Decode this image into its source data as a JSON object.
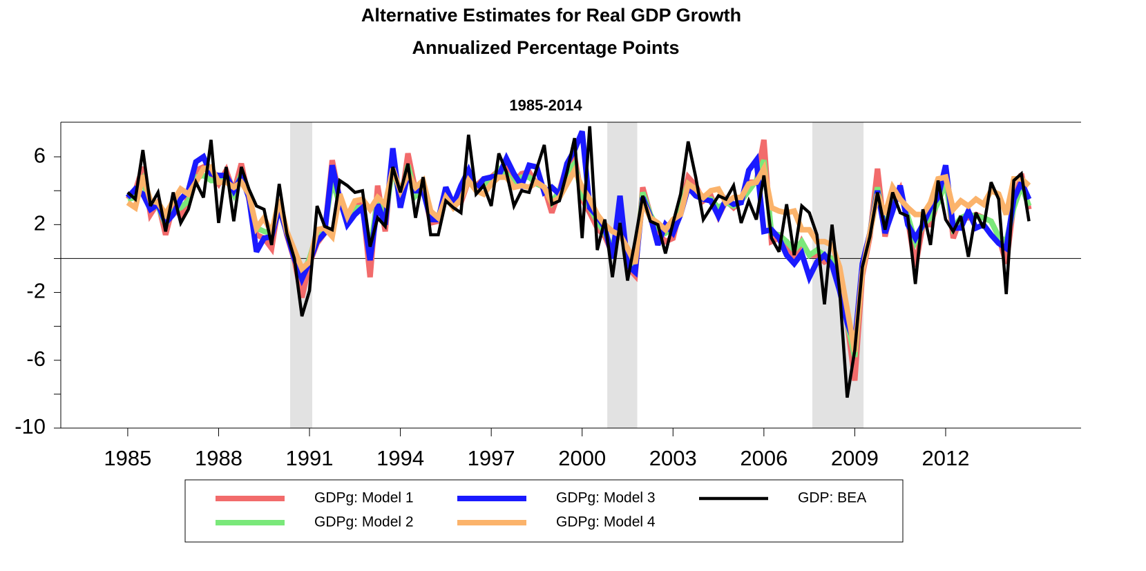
{
  "chart_data": {
    "type": "line",
    "title": "Alternative Estimates for Real GDP Growth",
    "subtitle": "Annualized Percentage Points",
    "panel_title": "1985-2014",
    "x": [
      1985,
      1985.25,
      1985.5,
      1985.75,
      1986,
      1986.25,
      1986.5,
      1986.75,
      1987,
      1987.25,
      1987.5,
      1987.75,
      1988,
      1988.25,
      1988.5,
      1988.75,
      1989,
      1989.25,
      1989.5,
      1989.75,
      1990,
      1990.25,
      1990.5,
      1990.75,
      1991,
      1991.25,
      1991.5,
      1991.75,
      1992,
      1992.25,
      1992.5,
      1992.75,
      1993,
      1993.25,
      1993.5,
      1993.75,
      1994,
      1994.25,
      1994.5,
      1994.75,
      1995,
      1995.25,
      1995.5,
      1995.75,
      1996,
      1996.25,
      1996.5,
      1996.75,
      1997,
      1997.25,
      1997.5,
      1997.75,
      1998,
      1998.25,
      1998.5,
      1998.75,
      1999,
      1999.25,
      1999.5,
      1999.75,
      2000,
      2000.25,
      2000.5,
      2000.75,
      2001,
      2001.25,
      2001.5,
      2001.75,
      2002,
      2002.25,
      2002.5,
      2002.75,
      2003,
      2003.25,
      2003.5,
      2003.75,
      2004,
      2004.25,
      2004.5,
      2004.75,
      2005,
      2005.25,
      2005.5,
      2005.75,
      2006,
      2006.25,
      2006.5,
      2006.75,
      2007,
      2007.25,
      2007.5,
      2007.75,
      2008,
      2008.25,
      2008.5,
      2008.75,
      2009,
      2009.25,
      2009.5,
      2009.75,
      2010,
      2010.25,
      2010.5,
      2010.75,
      2011,
      2011.25,
      2011.5,
      2011.75,
      2012,
      2012.25,
      2012.5,
      2012.75,
      2013,
      2013.25,
      2013.5,
      2013.75,
      2014,
      2014.25,
      2014.5,
      2014.75
    ],
    "series": [
      {
        "name": "GDPg: Model 1",
        "color": "#f26b6b",
        "width": 8,
        "values": [
          3.5,
          4.0,
          5.4,
          2.6,
          3.3,
          1.4,
          3.1,
          2.5,
          3.6,
          5.2,
          5.4,
          5.0,
          4.4,
          5.2,
          3.9,
          5.6,
          3.5,
          1.4,
          1.2,
          0.6,
          3.4,
          1.4,
          -0.1,
          -2.3,
          -0.3,
          0.9,
          1.5,
          5.8,
          3.5,
          2.3,
          3.1,
          3.3,
          -1.1,
          4.3,
          1.6,
          6.3,
          3.0,
          6.2,
          4.0,
          4.2,
          2.1,
          2.2,
          3.8,
          3.4,
          3.3,
          4.6,
          4.3,
          4.7,
          4.8,
          5.2,
          5.5,
          4.5,
          5.0,
          5.1,
          4.4,
          4.2,
          2.7,
          4.0,
          5.5,
          6.0,
          3.5,
          2.7,
          1.8,
          1.3,
          0.3,
          2.5,
          -0.5,
          -1.0,
          4.2,
          2.6,
          1.5,
          1.0,
          1.2,
          3.0,
          4.8,
          4.3,
          3.4,
          3.7,
          2.5,
          3.4,
          3.0,
          3.4,
          4.5,
          4.5,
          7.0,
          1.0,
          1.2,
          1.0,
          0.0,
          1.0,
          0.2,
          0.2,
          -0.2,
          0.0,
          -1.2,
          -3.8,
          -7.2,
          -1.0,
          1.3,
          5.3,
          1.3,
          3.3,
          4.1,
          2.3,
          -0.5,
          2.0,
          2.0,
          3.5,
          5.0,
          1.2,
          2.4,
          2.4,
          2.6,
          2.4,
          2.2,
          1.3,
          -0.3,
          3.2,
          5.0,
          2.9
        ]
      },
      {
        "name": "GDPg: Model 2",
        "color": "#7ae87a",
        "width": 8,
        "values": [
          3.5,
          3.6,
          4.6,
          3.0,
          3.1,
          2.0,
          2.8,
          3.0,
          3.4,
          4.8,
          4.9,
          4.6,
          4.6,
          4.8,
          3.8,
          5.0,
          3.6,
          1.8,
          1.6,
          1.5,
          3.0,
          1.5,
          0.3,
          -1.0,
          0.0,
          1.5,
          1.8,
          4.6,
          3.2,
          2.6,
          3.0,
          3.0,
          0.5,
          3.5,
          2.2,
          5.6,
          3.3,
          5.5,
          3.7,
          4.2,
          2.6,
          2.4,
          3.8,
          3.2,
          3.6,
          4.8,
          4.2,
          4.4,
          4.5,
          5.3,
          5.0,
          4.4,
          4.8,
          4.8,
          4.4,
          4.2,
          3.3,
          4.0,
          5.1,
          5.6,
          3.7,
          3.0,
          2.2,
          1.5,
          0.6,
          2.6,
          0.0,
          -0.6,
          3.9,
          2.6,
          1.8,
          1.5,
          1.8,
          3.2,
          4.4,
          4.0,
          3.5,
          3.5,
          3.0,
          3.3,
          3.1,
          3.4,
          4.0,
          4.6,
          5.8,
          1.5,
          1.4,
          1.0,
          0.5,
          1.0,
          0.2,
          0.5,
          0.2,
          0.0,
          -1.2,
          -3.8,
          -5.8,
          -0.6,
          1.5,
          4.2,
          1.8,
          3.2,
          3.8,
          2.5,
          1.0,
          2.0,
          2.4,
          3.3,
          4.5,
          1.8,
          2.4,
          2.6,
          2.5,
          2.4,
          2.2,
          1.3,
          1.0,
          3.0,
          4.3,
          3.1
        ]
      },
      {
        "name": "GDPg: Model 3",
        "color": "#1a1aff",
        "width": 8,
        "values": [
          3.6,
          4.1,
          3.8,
          2.9,
          3.2,
          2.1,
          2.6,
          3.5,
          4.0,
          5.7,
          6.0,
          5.0,
          4.9,
          4.9,
          4.0,
          4.8,
          3.6,
          0.4,
          1.2,
          1.3,
          3.0,
          1.5,
          0.0,
          -1.2,
          -0.2,
          1.0,
          1.5,
          5.5,
          3.5,
          2.0,
          2.6,
          3.0,
          -0.1,
          3.2,
          2.0,
          6.5,
          3.0,
          5.0,
          4.0,
          4.0,
          2.3,
          2.3,
          4.2,
          3.2,
          4.3,
          5.2,
          4.1,
          4.7,
          4.8,
          4.9,
          5.9,
          5.0,
          4.3,
          5.5,
          5.4,
          3.9,
          4.2,
          3.8,
          5.6,
          6.4,
          7.5,
          3.0,
          2.5,
          1.8,
          0.0,
          3.7,
          -0.4,
          -0.8,
          3.6,
          2.5,
          0.8,
          2.0,
          1.5,
          2.6,
          4.2,
          3.7,
          3.5,
          3.4,
          2.5,
          3.5,
          3.2,
          3.3,
          5.2,
          5.8,
          1.6,
          1.7,
          1.2,
          0.2,
          -0.3,
          0.3,
          -1.1,
          -0.2,
          0.2,
          -0.4,
          -1.9,
          -3.8,
          -5.0,
          -0.3,
          1.5,
          4.0,
          1.5,
          2.8,
          4.3,
          2.0,
          1.2,
          2.0,
          3.0,
          3.6,
          5.5,
          1.8,
          1.8,
          2.8,
          1.8,
          2.0,
          1.4,
          0.9,
          0.6,
          3.5,
          4.5,
          3.5
        ]
      },
      {
        "name": "GDPg: Model 4",
        "color": "#fbb36b",
        "width": 8,
        "values": [
          3.3,
          3.0,
          4.9,
          3.4,
          3.3,
          2.6,
          3.4,
          4.1,
          3.8,
          4.5,
          5.3,
          5.4,
          4.5,
          4.5,
          4.2,
          4.5,
          3.8,
          1.8,
          2.4,
          1.5,
          3.5,
          1.6,
          0.5,
          -0.6,
          -0.2,
          1.7,
          1.8,
          1.3,
          3.8,
          2.5,
          3.4,
          3.5,
          2.9,
          3.6,
          3.2,
          5.3,
          4.0,
          5.0,
          4.2,
          4.6,
          2.8,
          2.4,
          3.6,
          3.0,
          3.5,
          4.6,
          4.0,
          3.8,
          4.4,
          4.8,
          4.8,
          4.2,
          4.3,
          4.2,
          4.5,
          4.2,
          3.3,
          3.6,
          4.4,
          5.2,
          4.2,
          3.5,
          2.6,
          2.0,
          1.6,
          1.4,
          0.6,
          -0.3,
          3.4,
          2.4,
          2.1,
          1.7,
          2.3,
          2.6,
          4.4,
          4.1,
          3.6,
          4.0,
          4.1,
          3.3,
          3.6,
          3.6,
          4.4,
          4.5,
          5.3,
          3.0,
          2.8,
          2.7,
          2.8,
          1.7,
          1.7,
          1.0,
          1.0,
          0.8,
          -0.5,
          -3.0,
          -5.5,
          -0.8,
          1.5,
          3.8,
          2.6,
          4.2,
          3.5,
          3.0,
          2.6,
          2.6,
          3.3,
          4.7,
          4.8,
          2.9,
          3.4,
          3.1,
          3.5,
          3.2,
          4.0,
          3.8,
          2.6,
          4.7,
          4.7,
          4.3
        ]
      },
      {
        "name": "GDP: BEA",
        "color": "#000000",
        "width": 4.5,
        "values": [
          3.9,
          3.5,
          6.4,
          3.1,
          3.9,
          1.6,
          3.9,
          2.1,
          2.9,
          4.5,
          3.6,
          7.0,
          2.1,
          5.4,
          2.2,
          5.4,
          4.1,
          3.1,
          2.9,
          0.8,
          4.4,
          1.5,
          0.0,
          -3.4,
          -1.9,
          3.1,
          1.9,
          1.7,
          4.6,
          4.3,
          3.9,
          4.0,
          0.7,
          2.4,
          1.9,
          5.4,
          3.9,
          5.6,
          2.4,
          4.8,
          1.4,
          1.4,
          3.4,
          3.0,
          2.7,
          7.3,
          3.8,
          4.3,
          3.1,
          6.2,
          5.1,
          3.1,
          4.0,
          3.9,
          5.3,
          6.7,
          3.2,
          3.4,
          5.1,
          7.1,
          1.2,
          7.8,
          0.5,
          2.3,
          -1.1,
          2.1,
          -1.3,
          1.1,
          3.7,
          2.2,
          2.0,
          0.3,
          2.1,
          3.8,
          6.9,
          4.8,
          2.3,
          3.0,
          3.7,
          3.5,
          4.3,
          2.1,
          3.4,
          2.3,
          4.9,
          1.2,
          0.4,
          3.2,
          0.2,
          3.1,
          2.7,
          1.4,
          -2.7,
          2.0,
          -1.9,
          -8.2,
          -5.4,
          -0.5,
          1.3,
          3.9,
          1.7,
          3.9,
          2.7,
          2.5,
          -1.5,
          2.9,
          0.8,
          4.6,
          2.3,
          1.6,
          2.5,
          0.1,
          2.7,
          1.8,
          4.5,
          3.5,
          -2.1,
          4.6,
          5.0,
          2.2
        ]
      }
    ],
    "shaded_periods": [
      [
        1990.36,
        1991.09
      ],
      [
        2000.83,
        2001.82
      ],
      [
        2007.6,
        2009.29
      ]
    ],
    "shade_color": "#e2e2e2",
    "xlim": [
      1982.79,
      2016.47
    ],
    "xticks": [
      1985,
      1988,
      1991,
      1994,
      1997,
      2000,
      2003,
      2006,
      2009,
      2012
    ],
    "ylim": [
      -10,
      8.04
    ],
    "yticks": [
      -10,
      -6,
      -2,
      2,
      6
    ],
    "yticks_minor": [
      -8,
      -4,
      0,
      4
    ],
    "zero_line": true,
    "legend_position": "bottom"
  }
}
